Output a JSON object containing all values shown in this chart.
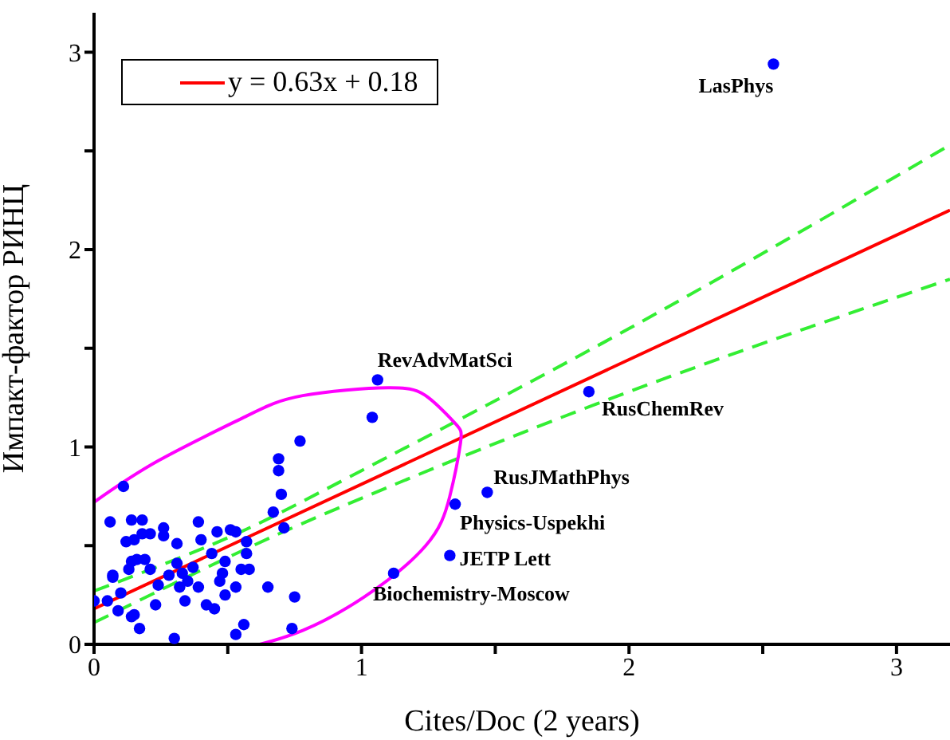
{
  "chart_data": {
    "type": "scatter",
    "xlabel": "Cites/Doc (2 years)",
    "ylabel": "Импакт-фактор РИНЦ",
    "xlim": [
      0,
      3.2
    ],
    "xticks": [
      0,
      {
        "value": 0.5,
        "label": null
      },
      1,
      {
        "value": 1.5,
        "label": null
      },
      2,
      {
        "value": 2.5,
        "label": null
      },
      3
    ],
    "ylim": [
      0,
      3.2
    ],
    "yticks": [
      0,
      {
        "value": 0.5,
        "label": null
      },
      1,
      {
        "value": 1.5,
        "label": null
      },
      2,
      {
        "value": 2.5,
        "label": null
      },
      3
    ],
    "grid": false,
    "legend": "top left",
    "series": [
      {
        "marker": "circle",
        "color": "#0000ff",
        "x": [
          0,
          0.05,
          0.06,
          0.07,
          0.07,
          0.09,
          0.1,
          0.11,
          0.12,
          0.13,
          0.14,
          0.14,
          0.14,
          0.15,
          0.15,
          0.16,
          0.17,
          0.18,
          0.18,
          0.19,
          0.21,
          0.21,
          0.23,
          0.24,
          0.26,
          0.26,
          0.28,
          0.3,
          0.31,
          0.31,
          0.32,
          0.33,
          0.34,
          0.35,
          0.37,
          0.39,
          0.39,
          0.4,
          0.42,
          0.44,
          0.45,
          0.46,
          0.47,
          0.48,
          0.49,
          0.49,
          0.51,
          0.53,
          0.53,
          0.53,
          0.55,
          0.56,
          0.57,
          0.57,
          0.58,
          0.65,
          0.67,
          0.69,
          0.69,
          0.7,
          0.71,
          0.74,
          0.75,
          0.77,
          1.04,
          1.06,
          1.12,
          1.33,
          1.35,
          1.47,
          1.85,
          2.54
        ],
        "values": [
          0.22,
          0.22,
          0.62,
          0.35,
          0.34,
          0.17,
          0.26,
          0.8,
          0.52,
          0.38,
          0.63,
          0.14,
          0.42,
          0.53,
          0.15,
          0.43,
          0.08,
          0.63,
          0.56,
          0.43,
          0.56,
          0.38,
          0.2,
          0.3,
          0.59,
          0.55,
          0.35,
          0.03,
          0.51,
          0.41,
          0.29,
          0.36,
          0.22,
          0.32,
          0.39,
          0.62,
          0.29,
          0.53,
          0.2,
          0.46,
          0.18,
          0.57,
          0.32,
          0.36,
          0.25,
          0.42,
          0.58,
          0.57,
          0.05,
          0.29,
          0.38,
          0.1,
          0.52,
          0.46,
          0.38,
          0.29,
          0.67,
          0.94,
          0.88,
          0.76,
          0.59,
          0.08,
          0.24,
          1.03,
          1.15,
          1.34,
          0.36,
          0.45,
          0.71,
          0.77,
          1.28,
          2.94
        ]
      },
      {
        "type": "line",
        "name": "y = 0.63x + 0.18",
        "color": "#ff0000",
        "x": [
          0,
          3.2
        ],
        "values": [
          0.18,
          2.2
        ],
        "line_style": "solid",
        "marker": "none"
      },
      {
        "type": "line",
        "color": "#33ee33",
        "x": [
          0,
          0.5,
          1,
          2,
          3.2
        ],
        "values": [
          0.27,
          0.54,
          0.88,
          1.6,
          2.53
        ],
        "line_style": "dashed",
        "marker": "none"
      },
      {
        "type": "line",
        "color": "#33ee33",
        "x": [
          0,
          0.5,
          1,
          2,
          3.2
        ],
        "values": [
          0.11,
          0.44,
          0.74,
          1.28,
          1.85
        ],
        "line_style": "dashed",
        "marker": "none"
      },
      {
        "type": "line",
        "color": "#ff00ff",
        "x": [
          0,
          0.24,
          0.56,
          0.78,
          1.1,
          1.25,
          1.35,
          1.37,
          1.33,
          1.24,
          1.01,
          0.78,
          0.62
        ],
        "values": [
          0.72,
          0.93,
          1.15,
          1.26,
          1.3,
          1.25,
          1.12,
          1.02,
          0.75,
          0.5,
          0.24,
          0.07,
          0
        ],
        "line_style": "solid",
        "marker": "none"
      }
    ],
    "annotations": [
      {
        "text": "LasPhys",
        "x": 2.54,
        "y": 2.94
      },
      {
        "text": "RevAdvMatSci",
        "x": 1.06,
        "y": 1.34
      },
      {
        "text": "RusChemRev",
        "x": 1.85,
        "y": 1.28
      },
      {
        "text": "RusJMathPhys",
        "x": 1.47,
        "y": 0.77
      },
      {
        "text": "Physics-Uspekhi",
        "x": 1.35,
        "y": 0.71
      },
      {
        "text": "JETP Lett",
        "x": 1.33,
        "y": 0.45
      },
      {
        "text": "Biochemistry-Moscow",
        "x": 1.12,
        "y": 0.36
      }
    ]
  }
}
